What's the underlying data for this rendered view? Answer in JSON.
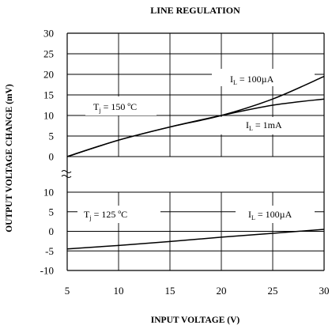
{
  "chart_data": [
    {
      "type": "line",
      "title": "LINE REGULATION",
      "xlabel": "INPUT VOLTAGE (V)",
      "ylabel": "OUTPUT VOLTAGE CHANGE (mV)",
      "x_ticks": [
        "5",
        "10",
        "15",
        "20",
        "25",
        "30"
      ],
      "xlim": [
        5,
        30
      ],
      "ylim": [
        0,
        30
      ],
      "y_ticks": [
        "0",
        "5",
        "10",
        "15",
        "20",
        "25",
        "30"
      ],
      "grid": true,
      "annotations": [
        {
          "main": "T",
          "sub": "j",
          "tail": " = 150 ºC"
        },
        {
          "main": "I",
          "sub": "L",
          "tail": " = 100µA"
        },
        {
          "main": "I",
          "sub": "L",
          "tail": " = 1mA"
        }
      ],
      "series": [
        {
          "x": [
            5,
            10,
            15,
            20,
            25,
            30
          ],
          "y": [
            0.0,
            4.0,
            7.2,
            10.0,
            14.0,
            19.5
          ]
        },
        {
          "x": [
            5,
            10,
            15,
            20,
            25,
            30
          ],
          "y": [
            0.0,
            4.0,
            7.2,
            10.0,
            12.5,
            14.0
          ]
        }
      ]
    },
    {
      "type": "line",
      "xlim": [
        5,
        30
      ],
      "ylim": [
        -10,
        10
      ],
      "y_ticks": [
        "-10",
        "-5",
        "0",
        "5",
        "10"
      ],
      "grid": true,
      "annotations": [
        {
          "main": "T",
          "sub": "j",
          "tail": " = 125 ºC"
        },
        {
          "main": "I",
          "sub": "L",
          "tail": " = 100µA"
        }
      ],
      "series": [
        {
          "x": [
            5,
            10,
            15,
            20,
            25,
            30
          ],
          "y": [
            -4.5,
            -3.6,
            -2.6,
            -1.5,
            -0.5,
            0.5
          ]
        }
      ]
    }
  ]
}
